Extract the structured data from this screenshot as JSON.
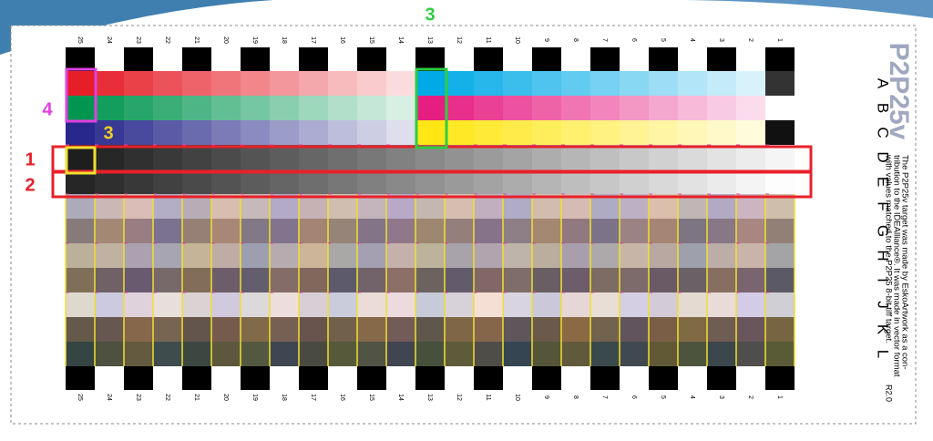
{
  "target": {
    "title": "P2P25v",
    "column_numbers_top": [
      "25",
      "24",
      "23",
      "22",
      "21",
      "20",
      "19",
      "18",
      "17",
      "16",
      "15",
      "14",
      "13",
      "12",
      "11",
      "10",
      "9",
      "8",
      "7",
      "6",
      "5",
      "4",
      "3",
      "2",
      "1"
    ],
    "column_numbers_bottom": [
      "25",
      "24",
      "23",
      "22",
      "21",
      "20",
      "19",
      "18",
      "17",
      "16",
      "15",
      "14",
      "13",
      "12",
      "11",
      "10",
      "9",
      "8",
      "7",
      "6",
      "5",
      "4",
      "3",
      "2",
      "1"
    ],
    "row_letters": [
      "A",
      "B",
      "C",
      "D",
      "E",
      "F",
      "G",
      "H",
      "I",
      "J",
      "K",
      "L"
    ],
    "description_lines": [
      "The P2P25v target was made by EskoArtwork as a con-",
      "tribution to the IDEAlliance®. It was made in vector format",
      "with values matched to the P2P25 8-bit tiff target."
    ],
    "revision": "R2.0"
  },
  "annotations": {
    "row_marker_1": "1",
    "row_marker_2": "2",
    "column_marker": "3",
    "patch_marker": "3",
    "row_group_marker": "4"
  }
}
